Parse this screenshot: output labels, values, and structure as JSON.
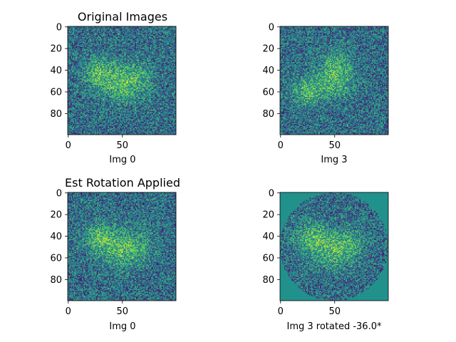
{
  "chart_data": [
    {
      "type": "heatmap",
      "title": "Original Images",
      "xlabel": "Img 0",
      "ylabel": "",
      "image_size": [
        100,
        100
      ],
      "x_ticks": [
        0,
        50
      ],
      "y_ticks": [
        0,
        20,
        40,
        60,
        80
      ],
      "xlim": [
        0,
        99
      ],
      "ylim": [
        99,
        0
      ],
      "colormap": "viridis",
      "value_range": [
        0,
        1
      ],
      "masked_corners": false,
      "feature_blobs": [
        {
          "x": 28,
          "y": 42,
          "sigma": 10,
          "amp": 0.28
        },
        {
          "x": 50,
          "y": 52,
          "sigma": 12,
          "amp": 0.3
        },
        {
          "x": 68,
          "y": 48,
          "sigma": 9,
          "amp": 0.14
        }
      ]
    },
    {
      "type": "heatmap",
      "title": "",
      "xlabel": "Img 3",
      "ylabel": "",
      "image_size": [
        100,
        100
      ],
      "x_ticks": [
        0,
        50
      ],
      "y_ticks": [
        0,
        20,
        40,
        60,
        80
      ],
      "xlim": [
        0,
        99
      ],
      "ylim": [
        99,
        0
      ],
      "colormap": "viridis",
      "value_range": [
        0,
        1
      ],
      "masked_corners": false,
      "feature_blobs": [
        {
          "x": 25,
          "y": 60,
          "sigma": 9,
          "amp": 0.3
        },
        {
          "x": 50,
          "y": 48,
          "sigma": 12,
          "amp": 0.3
        },
        {
          "x": 52,
          "y": 30,
          "sigma": 9,
          "amp": 0.14
        }
      ]
    },
    {
      "type": "heatmap",
      "title": "Est Rotation Applied",
      "xlabel": "Img 0",
      "ylabel": "",
      "image_size": [
        100,
        100
      ],
      "x_ticks": [
        0,
        50
      ],
      "y_ticks": [
        0,
        20,
        40,
        60,
        80
      ],
      "xlim": [
        0,
        99
      ],
      "ylim": [
        99,
        0
      ],
      "colormap": "viridis",
      "value_range": [
        0,
        1
      ],
      "masked_corners": false,
      "feature_blobs": [
        {
          "x": 28,
          "y": 42,
          "sigma": 10,
          "amp": 0.28
        },
        {
          "x": 50,
          "y": 52,
          "sigma": 12,
          "amp": 0.3
        },
        {
          "x": 68,
          "y": 48,
          "sigma": 9,
          "amp": 0.14
        }
      ]
    },
    {
      "type": "heatmap",
      "title": "",
      "xlabel": "Img 3 rotated -36.0*",
      "ylabel": "",
      "image_size": [
        100,
        100
      ],
      "x_ticks": [
        0,
        50
      ],
      "y_ticks": [
        0,
        20,
        40,
        60,
        80
      ],
      "xlim": [
        0,
        99
      ],
      "ylim": [
        99,
        0
      ],
      "colormap": "viridis",
      "value_range": [
        0,
        1
      ],
      "masked_corners": true,
      "mask_fill_value": 0.5,
      "feature_blobs": [
        {
          "x": 28,
          "y": 42,
          "sigma": 10,
          "amp": 0.28
        },
        {
          "x": 50,
          "y": 52,
          "sigma": 12,
          "amp": 0.3
        },
        {
          "x": 68,
          "y": 48,
          "sigma": 9,
          "amp": 0.14
        }
      ]
    }
  ]
}
